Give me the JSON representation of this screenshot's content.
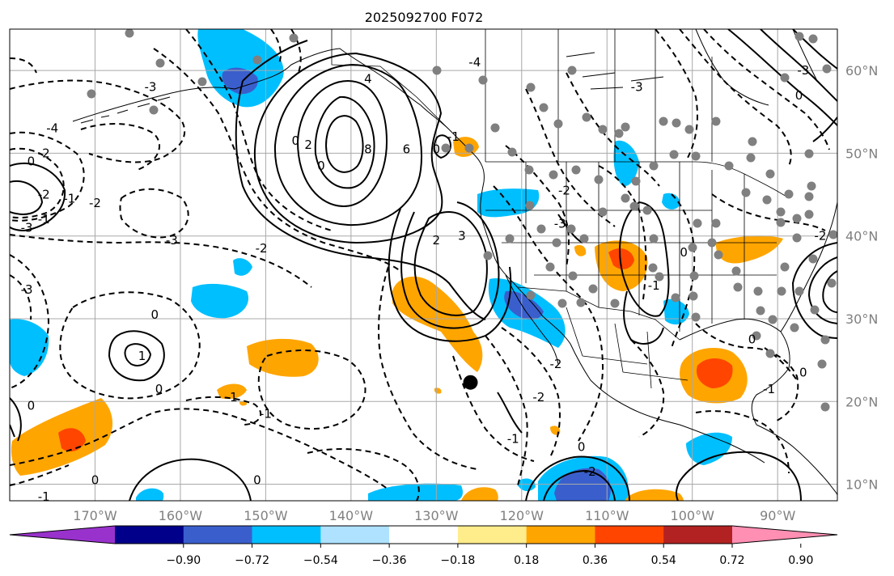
{
  "title": "2025092700 F072",
  "map": {
    "lon_range": [
      -180,
      -83
    ],
    "lat_range": [
      8,
      65
    ],
    "lat_labels": [
      "60°N",
      "50°N",
      "40°N",
      "30°N",
      "20°N",
      "10°N"
    ],
    "lat_values": [
      60,
      50,
      40,
      30,
      20,
      10
    ],
    "lon_labels": [
      "170°W",
      "160°W",
      "150°W",
      "140°W",
      "130°W",
      "120°W",
      "110°W",
      "100°W",
      "90°W"
    ],
    "lon_values": [
      -170,
      -160,
      -150,
      -140,
      -130,
      -120,
      -110,
      -100,
      -90
    ],
    "marker": {
      "lon": -126,
      "lat": 22.3
    },
    "contour_labels": [
      {
        "text": "8",
        "lon": -138,
        "lat": 50.5
      },
      {
        "text": "6",
        "lon": -133.5,
        "lat": 50.5
      },
      {
        "text": "4",
        "lon": -138,
        "lat": 59
      },
      {
        "text": "2",
        "lon": -145,
        "lat": 51
      },
      {
        "text": "0",
        "lon": -146.5,
        "lat": 51.5
      },
      {
        "text": "3",
        "lon": -127,
        "lat": 40
      },
      {
        "text": "2",
        "lon": -130,
        "lat": 39.5
      },
      {
        "text": "-1",
        "lon": -128,
        "lat": 52
      },
      {
        "text": "0",
        "lon": -130,
        "lat": 50.5
      },
      {
        "text": "-4",
        "lon": -175,
        "lat": 53
      },
      {
        "text": "-2",
        "lon": -176,
        "lat": 50
      },
      {
        "text": "0",
        "lon": -177.5,
        "lat": 49
      },
      {
        "text": "-2",
        "lon": -176,
        "lat": 45
      },
      {
        "text": "-1",
        "lon": -173,
        "lat": 44.5
      },
      {
        "text": "-2",
        "lon": -170,
        "lat": 44
      },
      {
        "text": "-3",
        "lon": -178,
        "lat": 41
      },
      {
        "text": "-1",
        "lon": -176,
        "lat": 42
      },
      {
        "text": "-3",
        "lon": -161,
        "lat": 39.5
      },
      {
        "text": "-2",
        "lon": -150.5,
        "lat": 38.5
      },
      {
        "text": "0",
        "lon": -143.5,
        "lat": 48.5
      },
      {
        "text": "-3",
        "lon": -178,
        "lat": 33.5
      },
      {
        "text": "-3",
        "lon": -163.5,
        "lat": 58
      },
      {
        "text": "0",
        "lon": -163,
        "lat": 30.5
      },
      {
        "text": "1",
        "lon": -164.5,
        "lat": 25.5
      },
      {
        "text": "0",
        "lon": -162.5,
        "lat": 21.5
      },
      {
        "text": "0",
        "lon": -177.5,
        "lat": 19.5
      },
      {
        "text": "-1",
        "lon": -150,
        "lat": 18.5
      },
      {
        "text": "-1",
        "lon": -154,
        "lat": 20.5
      },
      {
        "text": "0",
        "lon": -170,
        "lat": 10.5
      },
      {
        "text": "0",
        "lon": -151,
        "lat": 10.5
      },
      {
        "text": "-1",
        "lon": -176,
        "lat": 8.5
      },
      {
        "text": "-2",
        "lon": -118,
        "lat": 20.5
      },
      {
        "text": "-1",
        "lon": -121,
        "lat": 15.5
      },
      {
        "text": "-2",
        "lon": -116,
        "lat": 24.5
      },
      {
        "text": "0",
        "lon": -113,
        "lat": 14.5
      },
      {
        "text": "-2",
        "lon": -112,
        "lat": 11.5
      },
      {
        "text": "0",
        "lon": -101,
        "lat": 38
      },
      {
        "text": "-1",
        "lon": -104.5,
        "lat": 34
      },
      {
        "text": "0",
        "lon": -93,
        "lat": 27.5
      },
      {
        "text": "-1",
        "lon": -91,
        "lat": 21.5
      },
      {
        "text": "0",
        "lon": -87,
        "lat": 23.5
      },
      {
        "text": "-2",
        "lon": -85,
        "lat": 40
      },
      {
        "text": "-3",
        "lon": -115.5,
        "lat": 41.5
      },
      {
        "text": "-2",
        "lon": -115,
        "lat": 45.5
      },
      {
        "text": "0",
        "lon": -87.5,
        "lat": 57
      },
      {
        "text": "-3",
        "lon": -87,
        "lat": 60
      },
      {
        "text": "-4",
        "lon": -125.5,
        "lat": 61
      },
      {
        "text": "-3",
        "lon": -106.5,
        "lat": 58
      }
    ]
  },
  "colorbar": {
    "labels": [
      "−0.90",
      "−0.72",
      "−0.54",
      "−0.36",
      "−0.18",
      "0.18",
      "0.36",
      "0.54",
      "0.72",
      "0.90"
    ],
    "colors": [
      "#9932cc",
      "#00008b",
      "#3a5fcd",
      "#00bfff",
      "#aee2ff",
      "#ffffff",
      "#ffec8b",
      "#ffa500",
      "#ff4500",
      "#b22222",
      "#ff8fb3"
    ]
  },
  "shading_colors": {
    "neg_light": "#00bfff",
    "neg_dark": "#3a5fcd",
    "pos_light": "#ffa500",
    "pos_dark": "#ff4500"
  }
}
